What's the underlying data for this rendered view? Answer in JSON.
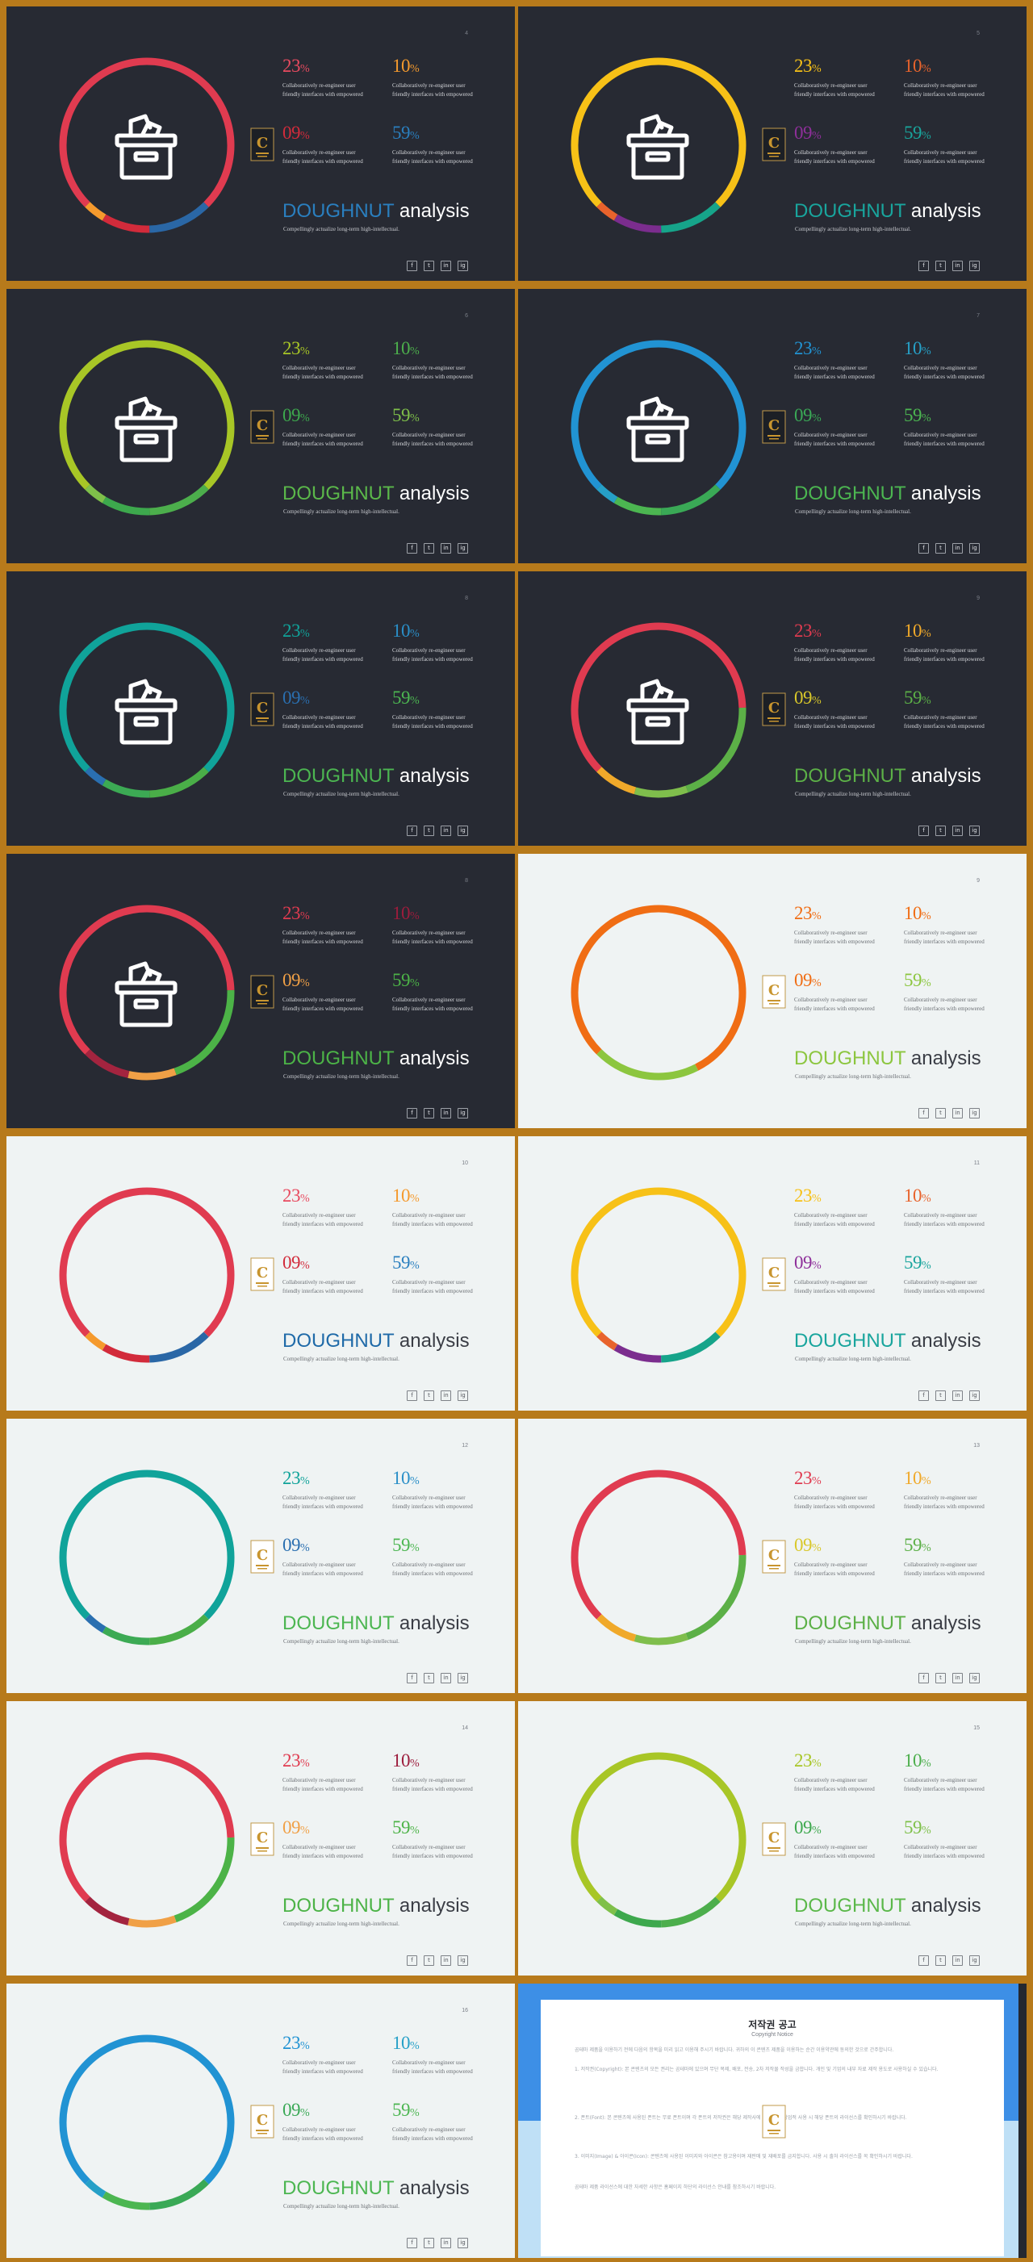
{
  "slides": [
    {
      "num": "4",
      "theme": "dark",
      "arcs": [
        [
          "#e03b50",
          0.75
        ],
        [
          "#2a67a6",
          0.12
        ],
        [
          "#d22b3b",
          0.09
        ],
        [
          "#f59a2d",
          0.04
        ]
      ],
      "stats": [
        {
          "v": "23",
          "c": "#e84a5f"
        },
        {
          "v": "10",
          "c": "#f59a2d"
        },
        {
          "v": "09",
          "c": "#d22b3b"
        },
        {
          "v": "59",
          "c": "#2a7fbf"
        }
      ],
      "title1": "DOUGHNUT",
      "title2": "analysis",
      "tcolor": "#2a7fbf"
    },
    {
      "num": "5",
      "theme": "dark",
      "arcs": [
        [
          "#f7c117",
          0.75
        ],
        [
          "#16a48a",
          0.12
        ],
        [
          "#7b2d8e",
          0.09
        ],
        [
          "#e8632c",
          0.04
        ]
      ],
      "stats": [
        {
          "v": "23",
          "c": "#f7c117"
        },
        {
          "v": "10",
          "c": "#e8632c"
        },
        {
          "v": "09",
          "c": "#8e2f9a"
        },
        {
          "v": "59",
          "c": "#19a59d"
        }
      ],
      "title1": "DOUGHNUT",
      "title2": "analysis",
      "tcolor": "#19a59d"
    },
    {
      "num": "6",
      "theme": "dark",
      "arcs": [
        [
          "#a8c626",
          0.75
        ],
        [
          "#4cae4c",
          0.12
        ],
        [
          "#3da84d",
          0.09
        ],
        [
          "#7fc04a",
          0.04
        ]
      ],
      "stats": [
        {
          "v": "23",
          "c": "#a8c626"
        },
        {
          "v": "10",
          "c": "#4cae4c"
        },
        {
          "v": "09",
          "c": "#3da84d"
        },
        {
          "v": "59",
          "c": "#7fc04a"
        }
      ],
      "title1": "DOUGHNUT",
      "title2": "analysis",
      "tcolor": "#5bb84a"
    },
    {
      "num": "7",
      "theme": "dark",
      "arcs": [
        [
          "#2193d3",
          0.75
        ],
        [
          "#3aa956",
          0.12
        ],
        [
          "#4cb651",
          0.09
        ],
        [
          "#26a0c7",
          0.04
        ]
      ],
      "stats": [
        {
          "v": "23",
          "c": "#2193d3"
        },
        {
          "v": "10",
          "c": "#26a0c7"
        },
        {
          "v": "09",
          "c": "#3aa956"
        },
        {
          "v": "59",
          "c": "#4cb651"
        }
      ],
      "title1": "DOUGHNUT",
      "title2": "analysis",
      "tcolor": "#4cb651"
    },
    {
      "num": "8",
      "theme": "dark",
      "arcs": [
        [
          "#10a39a",
          0.75
        ],
        [
          "#4aae48",
          0.12
        ],
        [
          "#3caa54",
          0.09
        ],
        [
          "#2a6fb0",
          0.04
        ]
      ],
      "stats": [
        {
          "v": "23",
          "c": "#10a39a"
        },
        {
          "v": "10",
          "c": "#2a8fc8"
        },
        {
          "v": "09",
          "c": "#2a6fb0"
        },
        {
          "v": "59",
          "c": "#4cb651"
        }
      ],
      "title1": "DOUGHNUT",
      "title2": "analysis",
      "tcolor": "#4cb651"
    },
    {
      "num": "9",
      "theme": "dark",
      "arcs": [
        [
          "#e03b50",
          0.62
        ],
        [
          "#5cb047",
          0.2
        ],
        [
          "#7fbe4c",
          0.1
        ],
        [
          "#f0a92a",
          0.08
        ]
      ],
      "stats": [
        {
          "v": "23",
          "c": "#e03b50"
        },
        {
          "v": "10",
          "c": "#f0a92a"
        },
        {
          "v": "09",
          "c": "#d9c82a"
        },
        {
          "v": "59",
          "c": "#5cb047"
        }
      ],
      "title1": "DOUGHNUT",
      "title2": "analysis",
      "tcolor": "#5cb047"
    },
    {
      "num": "8",
      "theme": "dark",
      "arcs": [
        [
          "#e03b50",
          0.62
        ],
        [
          "#4cb347",
          0.2
        ],
        [
          "#f0a046",
          0.09
        ],
        [
          "#a3243f",
          0.09
        ]
      ],
      "stats": [
        {
          "v": "23",
          "c": "#e03b50"
        },
        {
          "v": "10",
          "c": "#9c1c3c"
        },
        {
          "v": "09",
          "c": "#f0a046"
        },
        {
          "v": "59",
          "c": "#4cb347"
        }
      ],
      "title1": "DOUGHNUT",
      "title2": "analysis",
      "tcolor": "#4cb347"
    },
    {
      "num": "9",
      "theme": "light",
      "arcs": [
        [
          "#f06d14",
          0.8
        ],
        [
          "#8cc63f",
          0.2
        ]
      ],
      "stats": [
        {
          "v": "23",
          "c": "#f06d14"
        },
        {
          "v": "10",
          "c": "#f06d14"
        },
        {
          "v": "09",
          "c": "#f06d14"
        },
        {
          "v": "59",
          "c": "#8cc63f"
        }
      ],
      "title1": "DOUGHNUT",
      "title2": "analysis",
      "tcolor": "#8cc63f"
    },
    {
      "num": "10",
      "theme": "light",
      "arcs": [
        [
          "#e03b50",
          0.75
        ],
        [
          "#2a67a6",
          0.12
        ],
        [
          "#d22b3b",
          0.09
        ],
        [
          "#f59a2d",
          0.04
        ]
      ],
      "stats": [
        {
          "v": "23",
          "c": "#e84a5f"
        },
        {
          "v": "10",
          "c": "#f59a2d"
        },
        {
          "v": "09",
          "c": "#d22b3b"
        },
        {
          "v": "59",
          "c": "#2a7fbf"
        }
      ],
      "title1": "DOUGHNUT",
      "title2": "analysis",
      "tcolor": "#1f6aa8"
    },
    {
      "num": "11",
      "theme": "light",
      "arcs": [
        [
          "#f7c117",
          0.75
        ],
        [
          "#16a48a",
          0.12
        ],
        [
          "#7b2d8e",
          0.09
        ],
        [
          "#e8632c",
          0.04
        ]
      ],
      "stats": [
        {
          "v": "23",
          "c": "#f7c117"
        },
        {
          "v": "10",
          "c": "#e8632c"
        },
        {
          "v": "09",
          "c": "#8e2f9a"
        },
        {
          "v": "59",
          "c": "#19a59d"
        }
      ],
      "title1": "DOUGHNUT",
      "title2": "analysis",
      "tcolor": "#19a59d"
    },
    {
      "num": "12",
      "theme": "light",
      "arcs": [
        [
          "#10a39a",
          0.75
        ],
        [
          "#4aae48",
          0.12
        ],
        [
          "#3caa54",
          0.09
        ],
        [
          "#2a6fb0",
          0.04
        ]
      ],
      "stats": [
        {
          "v": "23",
          "c": "#10a39a"
        },
        {
          "v": "10",
          "c": "#2a8fc8"
        },
        {
          "v": "09",
          "c": "#2a6fb0"
        },
        {
          "v": "59",
          "c": "#4cb651"
        }
      ],
      "title1": "DOUGHNUT",
      "title2": "analysis",
      "tcolor": "#4cb651"
    },
    {
      "num": "13",
      "theme": "light",
      "arcs": [
        [
          "#e03b50",
          0.62
        ],
        [
          "#5cb047",
          0.2
        ],
        [
          "#7fbe4c",
          0.1
        ],
        [
          "#f0a92a",
          0.08
        ]
      ],
      "stats": [
        {
          "v": "23",
          "c": "#e03b50"
        },
        {
          "v": "10",
          "c": "#f0a92a"
        },
        {
          "v": "09",
          "c": "#d9c82a"
        },
        {
          "v": "59",
          "c": "#5cb047"
        }
      ],
      "title1": "DOUGHNUT",
      "title2": "analysis",
      "tcolor": "#5cb047"
    },
    {
      "num": "14",
      "theme": "light",
      "arcs": [
        [
          "#e03b50",
          0.62
        ],
        [
          "#4cb347",
          0.2
        ],
        [
          "#f0a046",
          0.09
        ],
        [
          "#a3243f",
          0.09
        ]
      ],
      "stats": [
        {
          "v": "23",
          "c": "#e03b50"
        },
        {
          "v": "10",
          "c": "#9c1c3c"
        },
        {
          "v": "09",
          "c": "#f0a046"
        },
        {
          "v": "59",
          "c": "#4cb347"
        }
      ],
      "title1": "DOUGHNUT",
      "title2": "analysis",
      "tcolor": "#4cb347"
    },
    {
      "num": "15",
      "theme": "light",
      "arcs": [
        [
          "#a8c626",
          0.75
        ],
        [
          "#4cae4c",
          0.12
        ],
        [
          "#3da84d",
          0.09
        ],
        [
          "#7fc04a",
          0.04
        ]
      ],
      "stats": [
        {
          "v": "23",
          "c": "#a8c626"
        },
        {
          "v": "10",
          "c": "#4cae4c"
        },
        {
          "v": "09",
          "c": "#3da84d"
        },
        {
          "v": "59",
          "c": "#7fc04a"
        }
      ],
      "title1": "DOUGHNUT",
      "title2": "analysis",
      "tcolor": "#5bb84a"
    },
    {
      "num": "16",
      "theme": "light",
      "arcs": [
        [
          "#2193d3",
          0.75
        ],
        [
          "#3aa956",
          0.12
        ],
        [
          "#4cb651",
          0.09
        ],
        [
          "#26a0c7",
          0.04
        ]
      ],
      "stats": [
        {
          "v": "23",
          "c": "#2193d3"
        },
        {
          "v": "10",
          "c": "#26a0c7"
        },
        {
          "v": "09",
          "c": "#3aa956"
        },
        {
          "v": "59",
          "c": "#4cb651"
        }
      ],
      "title1": "DOUGHNUT",
      "title2": "analysis",
      "tcolor": "#4cb651"
    }
  ],
  "stat_desc_1": "Collaboratively re-engineer user",
  "stat_desc_2": "friendly interfaces with empowered",
  "subtitle": "Compellingly actualize long-term high-intellectual.",
  "social_icons": [
    "f",
    "t",
    "in",
    "ig"
  ],
  "badge_letter": "C",
  "notice": {
    "title": "저작권 공고",
    "subtitle": "Copyright Notice",
    "p1": "곰테마 제품을 이용하기 전에 다음의 항목을 미리 읽고 이용해 주시기 바랍니다. 귀하의 이 콘텐츠 제품을 이용하는 순간 이용약관에 동의한 것으로 간주합니다.",
    "p2": "1. 저작권(Copyright): 본 콘텐츠의 모든 권리는 곰테마에 있으며 무단 복제, 배포, 전송, 2차 저작물 작성을 금합니다. 개인 및 기업의 내부 자료 제작 용도로 사용하실 수 있습니다.",
    "p3": "2. 폰트(Font): 본 콘텐츠에 사용된 폰트는 무료 폰트이며 각 폰트의 저작권은 해당 제작사에 있습니다. 상업적 사용 시 해당 폰트의 라이선스를 확인하시기 바랍니다.",
    "p4": "3. 이미지(Image) & 아이콘(Icon): 콘텐츠에 사용된 이미지와 아이콘은 참고용이며 재판매 및 재배포를 금지합니다. 사용 시 출처 라이선스를 꼭 확인하시기 바랍니다.",
    "p5": "곰테마 제품 라이선스에 대한 자세한 사항은 홈페이지 하단의 라이선스 안내를 참조하시기 바랍니다."
  }
}
